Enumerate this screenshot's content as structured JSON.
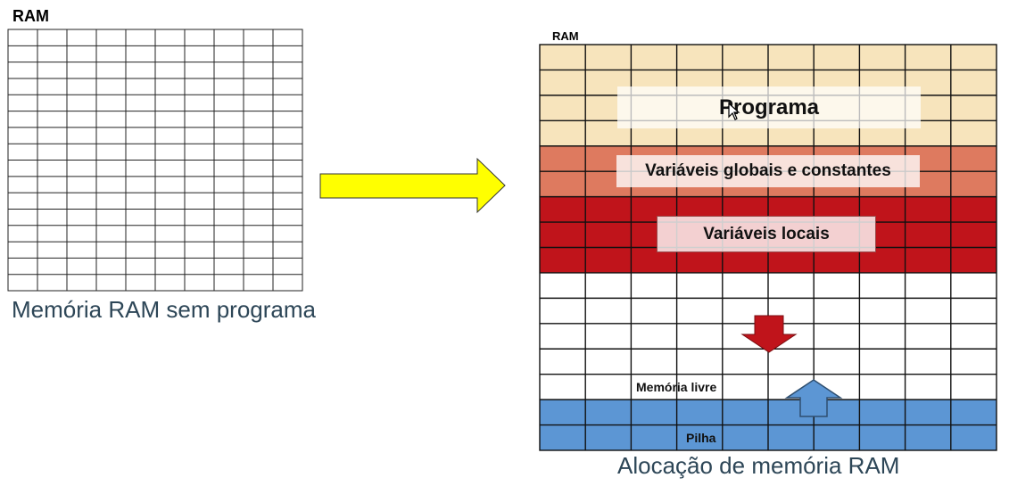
{
  "left_diagram": {
    "ram_label": "RAM",
    "caption": "Memória RAM sem programa",
    "grid": {
      "cols": 10,
      "rows": 16
    }
  },
  "right_diagram": {
    "ram_label": "RAM",
    "caption": "Alocação de memória RAM",
    "grid": {
      "cols": 10,
      "rows": 16
    },
    "segments": [
      {
        "name": "Programa",
        "rows": 4,
        "color": "#f7e4bc"
      },
      {
        "name": "Variáveis globais e constantes",
        "rows": 2,
        "color": "#de7a5f"
      },
      {
        "name": "Variáveis locais",
        "rows": 3,
        "color": "#c0141b"
      },
      {
        "name": "Memória livre",
        "rows": 5,
        "color": "#ffffff"
      },
      {
        "name": "Pilha",
        "rows": 2,
        "color": "#5c96d4"
      }
    ],
    "labels": {
      "programa": "Programa",
      "globais": "Variáveis globais e constantes",
      "locais": "Variáveis locais",
      "livre": "Memória livre",
      "pilha": "Pilha"
    }
  },
  "colors": {
    "arrow_yellow": "#ffff00",
    "arrow_down_red": "#c0141b",
    "arrow_up_blue": "#5c96d4",
    "caption": "#2d4657"
  },
  "icons": [
    "arrow-right-icon",
    "arrow-down-icon",
    "arrow-up-icon",
    "mouse-cursor-icon"
  ]
}
